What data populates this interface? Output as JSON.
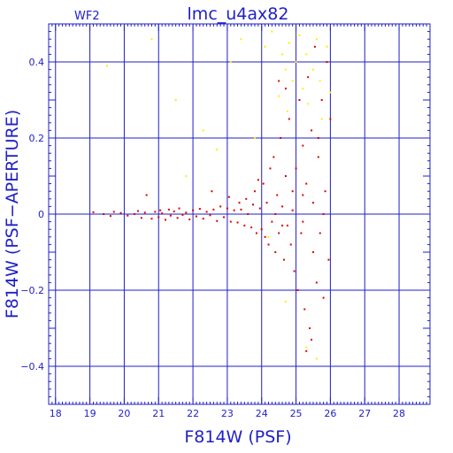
{
  "chart_data": {
    "type": "scatter",
    "title": "lmc_u4ax82",
    "corner_label": "WF2",
    "xlabel": "F814W (PSF)",
    "ylabel": "F814W (PSF−APERTURE)",
    "xlim": [
      17.8,
      28.9
    ],
    "ylim": [
      -0.5,
      0.5
    ],
    "xticks": [
      18,
      19,
      20,
      21,
      22,
      23,
      24,
      25,
      26,
      27,
      28
    ],
    "yticks": [
      -0.4,
      -0.2,
      0,
      0.2,
      0.4
    ],
    "ytick_labels": [
      "−0.4",
      "−0.2",
      "0",
      "0.2",
      "0.4"
    ],
    "grid": true,
    "colors": {
      "axis": "#1f1fc8",
      "grid": "#1f1fc8",
      "main_points": "#dd0000",
      "outlier_points": "#ffee00"
    },
    "series": [
      {
        "color": "#dd0000",
        "points": [
          [
            19.1,
            0.005
          ],
          [
            19.4,
            0.0
          ],
          [
            19.6,
            -0.005
          ],
          [
            19.7,
            0.006
          ],
          [
            19.9,
            0.003
          ],
          [
            20.1,
            -0.004
          ],
          [
            20.3,
            0.0
          ],
          [
            20.4,
            0.008
          ],
          [
            20.5,
            -0.01
          ],
          [
            20.6,
            0.004
          ],
          [
            20.65,
            0.05
          ],
          [
            20.8,
            -0.012
          ],
          [
            20.9,
            0.006
          ],
          [
            21.0,
            -0.008
          ],
          [
            21.05,
            0.01
          ],
          [
            21.1,
            0.002
          ],
          [
            21.2,
            -0.015
          ],
          [
            21.3,
            0.012
          ],
          [
            21.35,
            -0.004
          ],
          [
            21.45,
            0.007
          ],
          [
            21.55,
            -0.01
          ],
          [
            21.6,
            0.015
          ],
          [
            21.7,
            -0.002
          ],
          [
            21.8,
            0.004
          ],
          [
            21.9,
            -0.014
          ],
          [
            22.0,
            0.01
          ],
          [
            22.1,
            -0.006
          ],
          [
            22.2,
            0.014
          ],
          [
            22.3,
            -0.012
          ],
          [
            22.4,
            0.006
          ],
          [
            22.5,
            -0.003
          ],
          [
            22.55,
            0.06
          ],
          [
            22.6,
            0.012
          ],
          [
            22.7,
            -0.018
          ],
          [
            22.8,
            0.02
          ],
          [
            22.9,
            -0.008
          ],
          [
            23.0,
            0.015
          ],
          [
            23.05,
            0.045
          ],
          [
            23.1,
            -0.02
          ],
          [
            23.2,
            0.01
          ],
          [
            23.3,
            -0.022
          ],
          [
            23.35,
            0.03
          ],
          [
            23.4,
            0.012
          ],
          [
            23.5,
            -0.03
          ],
          [
            23.55,
            0.04
          ],
          [
            23.6,
            0.0
          ],
          [
            23.7,
            -0.035
          ],
          [
            23.75,
            0.025
          ],
          [
            23.8,
            0.06
          ],
          [
            23.85,
            -0.05
          ],
          [
            23.9,
            0.09
          ],
          [
            23.95,
            0.015
          ],
          [
            24.0,
            -0.04
          ],
          [
            24.05,
            0.08
          ],
          [
            24.1,
            -0.06
          ],
          [
            24.15,
            0.03
          ],
          [
            24.2,
            -0.08
          ],
          [
            24.25,
            0.12
          ],
          [
            24.3,
            -0.02
          ],
          [
            24.35,
            0.15
          ],
          [
            24.4,
            -0.1
          ],
          [
            24.45,
            0.05
          ],
          [
            24.5,
            -0.05
          ],
          [
            24.55,
            0.2
          ],
          [
            24.6,
            0.02
          ],
          [
            24.65,
            -0.12
          ],
          [
            24.7,
            0.1
          ],
          [
            24.75,
            -0.03
          ],
          [
            24.8,
            0.25
          ],
          [
            24.85,
            -0.08
          ],
          [
            24.9,
            0.06
          ],
          [
            24.95,
            -0.15
          ],
          [
            25.0,
            0.12
          ],
          [
            25.05,
            -0.2
          ],
          [
            25.1,
            0.3
          ],
          [
            25.15,
            -0.05
          ],
          [
            25.2,
            0.18
          ],
          [
            25.25,
            -0.25
          ],
          [
            25.3,
            0.08
          ],
          [
            25.35,
            0.36
          ],
          [
            25.4,
            -0.3
          ],
          [
            25.45,
            0.22
          ],
          [
            25.5,
            -0.1
          ],
          [
            25.55,
            0.44
          ],
          [
            25.6,
            -0.18
          ],
          [
            25.65,
            0.15
          ],
          [
            25.7,
            -0.05
          ],
          [
            25.75,
            0.3
          ],
          [
            25.8,
            -0.22
          ],
          [
            25.85,
            0.06
          ],
          [
            25.9,
            0.4
          ],
          [
            25.95,
            -0.12
          ],
          [
            26.0,
            0.25
          ],
          [
            24.4,
            0.0
          ],
          [
            24.6,
            -0.03
          ],
          [
            24.9,
            0.01
          ],
          [
            25.2,
            -0.02
          ],
          [
            25.5,
            0.03
          ],
          [
            25.8,
            0.0
          ],
          [
            25.3,
            -0.36
          ],
          [
            25.45,
            -0.33
          ],
          [
            24.7,
            0.33
          ],
          [
            24.5,
            0.35
          ],
          [
            25.65,
            0.2
          ],
          [
            25.2,
            0.05
          ]
        ]
      },
      {
        "color": "#ffee00",
        "points": [
          [
            19.5,
            0.39
          ],
          [
            20.8,
            0.46
          ],
          [
            21.5,
            0.3
          ],
          [
            21.8,
            0.1
          ],
          [
            22.3,
            0.22
          ],
          [
            22.7,
            0.17
          ],
          [
            23.1,
            0.4
          ],
          [
            23.4,
            0.46
          ],
          [
            23.8,
            0.2
          ],
          [
            24.1,
            0.44
          ],
          [
            24.3,
            0.48
          ],
          [
            24.5,
            0.31
          ],
          [
            24.6,
            0.42
          ],
          [
            24.7,
            0.38
          ],
          [
            24.75,
            0.27
          ],
          [
            24.8,
            0.45
          ],
          [
            24.9,
            0.35
          ],
          [
            25.0,
            0.4
          ],
          [
            25.1,
            0.47
          ],
          [
            25.2,
            0.33
          ],
          [
            25.3,
            0.42
          ],
          [
            25.35,
            0.29
          ],
          [
            25.5,
            0.38
          ],
          [
            25.6,
            0.46
          ],
          [
            25.7,
            0.35
          ],
          [
            25.75,
            0.25
          ],
          [
            25.9,
            0.44
          ],
          [
            26.0,
            0.32
          ],
          [
            24.7,
            -0.23
          ],
          [
            25.3,
            -0.35
          ],
          [
            24.2,
            -0.06
          ],
          [
            25.6,
            -0.38
          ]
        ]
      }
    ]
  }
}
